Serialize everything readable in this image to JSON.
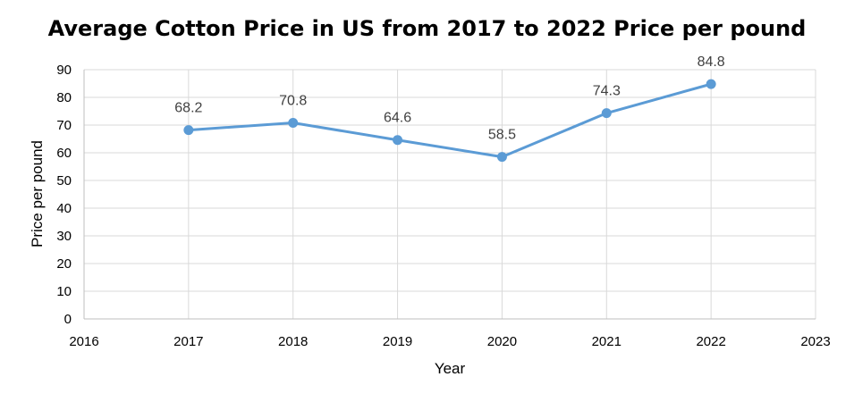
{
  "chart_data": {
    "type": "line",
    "title": "Average Cotton Price in US from 2017 to 2022 Price per pound",
    "xlabel": "Year",
    "ylabel": "Price per pound",
    "xlim": [
      2016,
      2023
    ],
    "ylim": [
      0,
      90
    ],
    "x_ticks": [
      "2016",
      "2017",
      "2018",
      "2019",
      "2020",
      "2021",
      "2022",
      "2023"
    ],
    "y_ticks": [
      "0",
      "10",
      "20",
      "30",
      "40",
      "50",
      "60",
      "70",
      "80",
      "90"
    ],
    "grid": true,
    "legend": "none",
    "series": [
      {
        "color": "#5B9BD5",
        "x": [
          2017,
          2018,
          2019,
          2020,
          2021,
          2022
        ],
        "values": [
          68.2,
          70.8,
          64.6,
          58.5,
          74.3,
          84.8
        ],
        "labels": [
          "68.2",
          "70.8",
          "64.6",
          "58.5",
          "74.3",
          "84.8"
        ]
      }
    ]
  }
}
